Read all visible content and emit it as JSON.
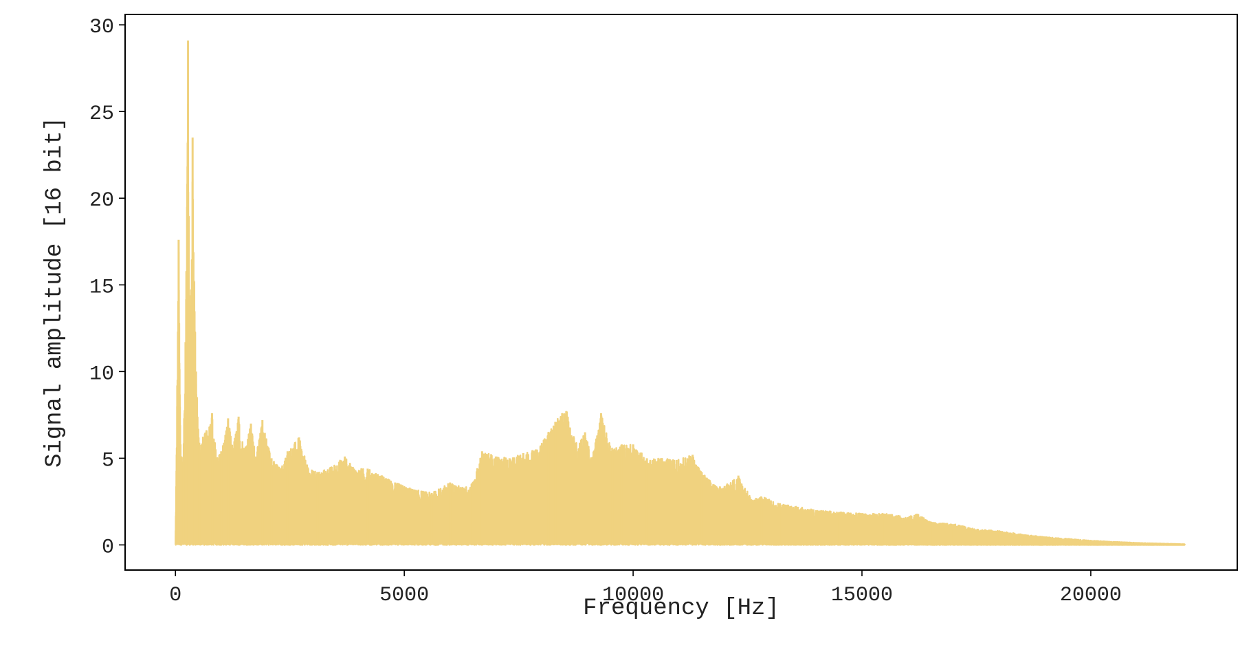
{
  "chart_data": {
    "type": "line",
    "title": "",
    "xlabel": "Frequency [Hz]",
    "ylabel": "Signal amplitude [16 bit]",
    "xlim": [
      -1100,
      23200
    ],
    "ylim": [
      -1.45,
      30.6
    ],
    "xticks": [
      0,
      5000,
      10000,
      15000,
      20000
    ],
    "yticks": [
      0,
      5,
      10,
      15,
      20,
      25,
      30
    ],
    "xtick_labels": [
      "0",
      "5000",
      "10000",
      "15000",
      "20000"
    ],
    "ytick_labels": [
      "0",
      "5",
      "10",
      "15",
      "20",
      "25",
      "30"
    ],
    "grid": false,
    "legend": "none",
    "series": [
      {
        "color": "#f0d27f",
        "peaks": [
          [
            0,
            0
          ],
          [
            40,
            9.2
          ],
          [
            70,
            17.6
          ],
          [
            110,
            5.8
          ],
          [
            170,
            4.8
          ],
          [
            220,
            11.7
          ],
          [
            275,
            29.1
          ],
          [
            300,
            14.4
          ],
          [
            335,
            13.8
          ],
          [
            375,
            23.5
          ],
          [
            410,
            15.2
          ],
          [
            450,
            10.0
          ],
          [
            520,
            5.9
          ],
          [
            680,
            6.6
          ],
          [
            800,
            7.6
          ],
          [
            900,
            5.0
          ],
          [
            1000,
            5.4
          ],
          [
            1150,
            7.3
          ],
          [
            1250,
            5.6
          ],
          [
            1380,
            7.4
          ],
          [
            1500,
            5.6
          ],
          [
            1650,
            7.0
          ],
          [
            1760,
            5.1
          ],
          [
            1900,
            7.2
          ],
          [
            2100,
            5.0
          ],
          [
            2300,
            4.4
          ],
          [
            2450,
            5.4
          ],
          [
            2700,
            6.2
          ],
          [
            2900,
            4.4
          ],
          [
            3100,
            4.2
          ],
          [
            3400,
            4.5
          ],
          [
            3700,
            5.1
          ],
          [
            3900,
            4.4
          ],
          [
            4200,
            4.4
          ],
          [
            4500,
            4.0
          ],
          [
            4800,
            3.6
          ],
          [
            5200,
            3.2
          ],
          [
            5600,
            3.0
          ],
          [
            6000,
            3.6
          ],
          [
            6300,
            3.3
          ],
          [
            6500,
            3.6
          ],
          [
            6700,
            5.4
          ],
          [
            7000,
            5.1
          ],
          [
            7300,
            5.0
          ],
          [
            7600,
            5.3
          ],
          [
            7900,
            5.5
          ],
          [
            8150,
            6.5
          ],
          [
            8300,
            7.1
          ],
          [
            8450,
            7.6
          ],
          [
            8550,
            7.7
          ],
          [
            8750,
            5.9
          ],
          [
            8950,
            6.5
          ],
          [
            9100,
            5.0
          ],
          [
            9300,
            7.6
          ],
          [
            9550,
            5.5
          ],
          [
            9750,
            5.8
          ],
          [
            10000,
            5.8
          ],
          [
            10300,
            5.0
          ],
          [
            10600,
            5.0
          ],
          [
            10950,
            4.9
          ],
          [
            11300,
            5.2
          ],
          [
            11500,
            4.2
          ],
          [
            11800,
            3.4
          ],
          [
            12000,
            3.4
          ],
          [
            12300,
            4.0
          ],
          [
            12600,
            2.6
          ],
          [
            12800,
            2.8
          ],
          [
            13200,
            2.4
          ],
          [
            13600,
            2.2
          ],
          [
            14000,
            2.0
          ],
          [
            14500,
            1.9
          ],
          [
            15000,
            1.8
          ],
          [
            15500,
            1.8
          ],
          [
            16000,
            1.6
          ],
          [
            16200,
            1.8
          ],
          [
            16500,
            1.3
          ],
          [
            17000,
            1.2
          ],
          [
            17500,
            0.9
          ],
          [
            18000,
            0.8
          ],
          [
            18500,
            0.6
          ],
          [
            19000,
            0.45
          ],
          [
            19500,
            0.35
          ],
          [
            20000,
            0.25
          ],
          [
            20500,
            0.18
          ],
          [
            21000,
            0.12
          ],
          [
            21500,
            0.08
          ],
          [
            22050,
            0.04
          ]
        ]
      }
    ]
  }
}
